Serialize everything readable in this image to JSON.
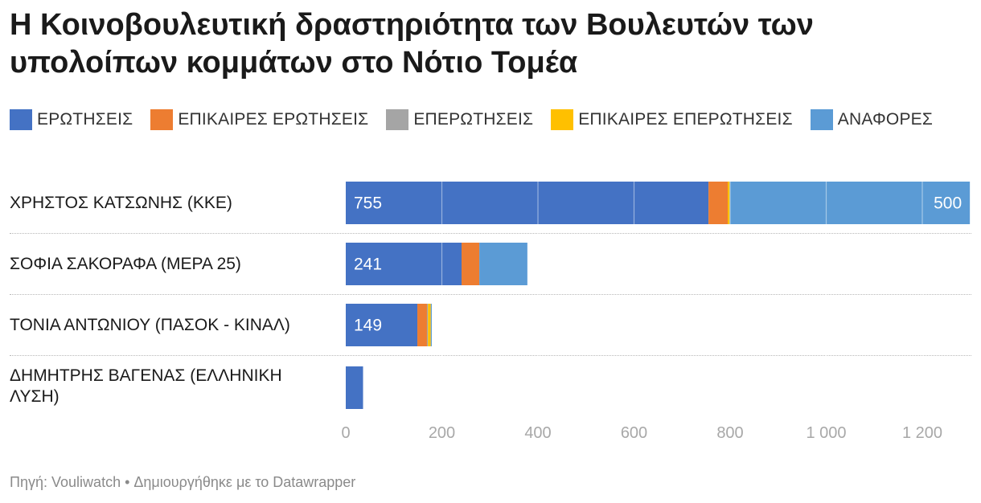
{
  "title": "Η Κοινοβουλευτική δραστηριότητα των Βουλευτών των υπολοίπων κομμάτων στο Νότιο Τομέα",
  "footer": {
    "source": "Πηγή: Vouliwatch",
    "separator": " • ",
    "credit": "Δημιουργήθηκε με το Datawrapper"
  },
  "chart_data": {
    "type": "bar",
    "orientation": "horizontal",
    "stacked": true,
    "legend_position": "top",
    "grid": true,
    "xlim": [
      0,
      1300
    ],
    "x_ticks": [
      0,
      200,
      400,
      600,
      800,
      1000,
      1200
    ],
    "x_tick_labels": [
      "0",
      "200",
      "400",
      "600",
      "800",
      "1 000",
      "1 200"
    ],
    "categories": [
      "ΧΡΗΣΤΟΣ ΚΑΤΣΩΝΗΣ (ΚΚΕ)",
      "ΣΟΦΙΑ ΣΑΚΟΡΑΦΑ (ΜΕΡΑ 25)",
      "ΤΟΝΙΑ ΑΝΤΩΝΙΟΥ (ΠΑΣΟΚ - ΚΙΝΑΛ)",
      "ΔΗΜΗΤΡΗΣ ΒΑΓΕΝΑΣ (ΕΛΛΗΝΙΚΗ ΛΥΣΗ)"
    ],
    "series": [
      {
        "name": "ΕΡΩΤΗΣΕΙΣ",
        "color": "#4472c4",
        "values": [
          755,
          241,
          149,
          36
        ]
      },
      {
        "name": "ΕΠΙΚΑΙΡΕΣ ΕΡΩΤΗΣΕΙΣ",
        "color": "#ed7d31",
        "values": [
          40,
          37,
          20,
          0
        ]
      },
      {
        "name": "ΕΠΕΡΩΤΗΣΕΙΣ",
        "color": "#a5a5a5",
        "values": [
          0,
          0,
          2,
          0
        ]
      },
      {
        "name": "ΕΠΙΚΑΙΡΕΣ ΕΠΕΡΩΤΗΣΕΙΣ",
        "color": "#ffc000",
        "values": [
          4,
          0,
          6,
          0
        ]
      },
      {
        "name": "ΑΝΑΦΟΡΕΣ",
        "color": "#5b9bd5",
        "values": [
          500,
          100,
          2,
          0
        ]
      }
    ],
    "data_labels": [
      {
        "row": 0,
        "series": 0,
        "text": "755"
      },
      {
        "row": 0,
        "series": 4,
        "text": "500"
      },
      {
        "row": 1,
        "series": 0,
        "text": "241"
      },
      {
        "row": 2,
        "series": 0,
        "text": "149"
      }
    ]
  }
}
